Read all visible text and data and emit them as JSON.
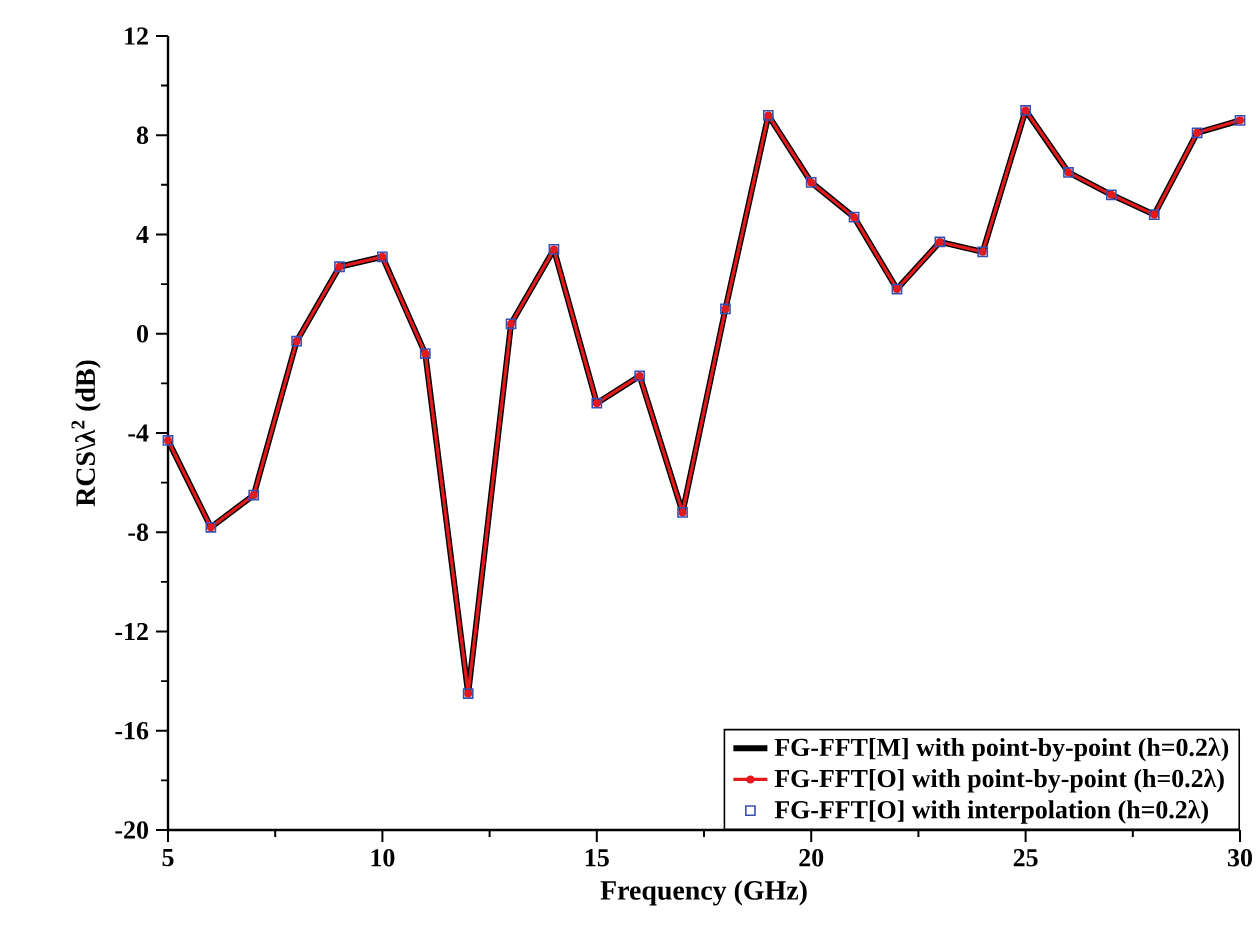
{
  "chart_data": {
    "type": "line",
    "xlabel": "Frequency (GHz)",
    "ylabel": "RCS\\λ$^{2}$ (dB)",
    "x": [
      5,
      6,
      7,
      8,
      9,
      10,
      11,
      12,
      13,
      14,
      15,
      16,
      17,
      18,
      19,
      20,
      21,
      22,
      23,
      24,
      25,
      26,
      27,
      28,
      29,
      30
    ],
    "xlim": [
      5,
      30
    ],
    "xticks": [
      5,
      10,
      15,
      20,
      25,
      30
    ],
    "ylim": [
      -20,
      12
    ],
    "yticks": [
      -20,
      -16,
      -12,
      -8,
      -4,
      0,
      4,
      8,
      12
    ],
    "legend": "bottom right",
    "grid": false,
    "series": [
      {
        "name": "FG-FFT[M] with point-by-point (h=0.2λ)",
        "color": "#000000",
        "marker": "none",
        "line_style": "solid",
        "values": [
          -4.3,
          -7.8,
          -6.5,
          -0.3,
          2.7,
          3.1,
          -0.8,
          -14.5,
          0.4,
          3.4,
          -2.8,
          -1.7,
          -7.2,
          1.0,
          8.8,
          6.1,
          4.7,
          1.8,
          3.7,
          3.3,
          9.0,
          6.5,
          5.6,
          4.8,
          8.1,
          8.6
        ]
      },
      {
        "name": "FG-FFT[O] with point-by-point (h=0.2λ)",
        "color": "#e31a1c",
        "marker": "circle",
        "line_style": "solid",
        "values": [
          -4.3,
          -7.8,
          -6.5,
          -0.3,
          2.7,
          3.1,
          -0.8,
          -14.5,
          0.4,
          3.4,
          -2.8,
          -1.7,
          -7.2,
          1.0,
          8.8,
          6.1,
          4.7,
          1.8,
          3.7,
          3.3,
          9.0,
          6.5,
          5.6,
          4.8,
          8.1,
          8.6
        ]
      },
      {
        "name": "FG-FFT[O] with interpolation (h=0.2λ)",
        "color": "#3a4fb0",
        "type": "scatter",
        "marker": "square",
        "values": [
          -4.3,
          -7.8,
          -6.5,
          -0.3,
          2.7,
          3.1,
          -0.8,
          -14.5,
          0.4,
          3.4,
          -2.8,
          -1.7,
          -7.2,
          1.0,
          8.8,
          6.1,
          4.7,
          1.8,
          3.7,
          3.3,
          9.0,
          6.5,
          5.6,
          4.8,
          8.1,
          8.6
        ]
      }
    ]
  }
}
